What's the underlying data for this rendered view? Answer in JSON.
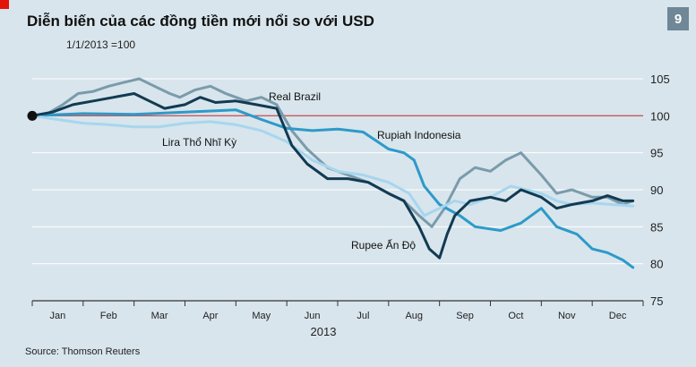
{
  "badge": "9",
  "source": "Source: Thomson Reuters",
  "colors": {
    "background": "#d8e5ec",
    "grid": "#ffffff",
    "reference": "#c9585a",
    "real_brazil": "#7a9bab",
    "rupiah_indonesia": "#2d9ac9",
    "lira": "#a7d6ee",
    "rupee": "#123a52"
  },
  "chart_data": {
    "type": "line",
    "title": "Diễn biến của các đồng tiền mới nổi so với USD",
    "subtitle": "1/1/2013 =100",
    "xlabel": "2013",
    "ylabel": "",
    "ylim": [
      75,
      105
    ],
    "yticks": [
      75,
      80,
      85,
      90,
      95,
      100,
      105
    ],
    "xlim": [
      0,
      12
    ],
    "month_labels": [
      "Jan",
      "Feb",
      "Mar",
      "Apr",
      "May",
      "Jun",
      "Jul",
      "Aug",
      "Sep",
      "Oct",
      "Nov",
      "Dec"
    ],
    "reference_line": 100,
    "grid": true,
    "series": [
      {
        "name": "Real Brazil",
        "color_key": "real_brazil",
        "points": [
          [
            0,
            100
          ],
          [
            0.3,
            100.3
          ],
          [
            0.6,
            101.5
          ],
          [
            0.9,
            103
          ],
          [
            1.2,
            103.3
          ],
          [
            1.5,
            104
          ],
          [
            1.8,
            104.5
          ],
          [
            2.1,
            105
          ],
          [
            2.4,
            104
          ],
          [
            2.7,
            103
          ],
          [
            2.9,
            102.5
          ],
          [
            3.2,
            103.5
          ],
          [
            3.5,
            104
          ],
          [
            3.8,
            103
          ],
          [
            4.2,
            102
          ],
          [
            4.5,
            102.5
          ],
          [
            4.8,
            101.5
          ],
          [
            5.1,
            98
          ],
          [
            5.4,
            95.5
          ],
          [
            5.8,
            93
          ],
          [
            6.2,
            92
          ],
          [
            6.6,
            91
          ],
          [
            7,
            89.5
          ],
          [
            7.3,
            88.5
          ],
          [
            7.6,
            86.5
          ],
          [
            7.85,
            85
          ],
          [
            8.1,
            87.5
          ],
          [
            8.4,
            91.5
          ],
          [
            8.7,
            93
          ],
          [
            9,
            92.5
          ],
          [
            9.3,
            94
          ],
          [
            9.6,
            95
          ],
          [
            10,
            92
          ],
          [
            10.3,
            89.5
          ],
          [
            10.6,
            90
          ],
          [
            11,
            89
          ],
          [
            11.3,
            89
          ],
          [
            11.6,
            88
          ],
          [
            11.8,
            88.5
          ]
        ]
      },
      {
        "name": "Rupiah Indonesia",
        "color_key": "rupiah_indonesia",
        "points": [
          [
            0,
            100
          ],
          [
            1,
            100.3
          ],
          [
            2,
            100.2
          ],
          [
            3,
            100.5
          ],
          [
            4,
            100.8
          ],
          [
            4.5,
            99.5
          ],
          [
            5,
            98.3
          ],
          [
            5.5,
            98
          ],
          [
            6,
            98.2
          ],
          [
            6.5,
            97.8
          ],
          [
            7,
            95.5
          ],
          [
            7.3,
            95
          ],
          [
            7.5,
            94
          ],
          [
            7.7,
            90.5
          ],
          [
            8,
            88
          ],
          [
            8.4,
            86.5
          ],
          [
            8.7,
            85
          ],
          [
            9.2,
            84.5
          ],
          [
            9.6,
            85.5
          ],
          [
            10,
            87.5
          ],
          [
            10.3,
            85
          ],
          [
            10.7,
            84
          ],
          [
            11,
            82
          ],
          [
            11.3,
            81.5
          ],
          [
            11.6,
            80.5
          ],
          [
            11.8,
            79.5
          ]
        ]
      },
      {
        "name": "Lira Thổ Nhĩ Kỳ",
        "color_key": "lira",
        "points": [
          [
            0,
            100
          ],
          [
            0.5,
            99.5
          ],
          [
            1,
            99
          ],
          [
            1.5,
            98.8
          ],
          [
            2,
            98.5
          ],
          [
            2.5,
            98.5
          ],
          [
            3,
            99
          ],
          [
            3.5,
            99.2
          ],
          [
            4,
            98.8
          ],
          [
            4.5,
            98
          ],
          [
            5,
            96.5
          ],
          [
            5.5,
            94
          ],
          [
            6,
            92.5
          ],
          [
            6.5,
            92
          ],
          [
            7,
            91
          ],
          [
            7.4,
            89.5
          ],
          [
            7.7,
            86.5
          ],
          [
            8,
            87.5
          ],
          [
            8.3,
            88.5
          ],
          [
            8.6,
            88
          ],
          [
            9,
            89
          ],
          [
            9.4,
            90.5
          ],
          [
            9.7,
            90
          ],
          [
            10,
            89.5
          ],
          [
            10.3,
            88.5
          ],
          [
            10.6,
            88
          ],
          [
            11,
            88.2
          ],
          [
            11.4,
            88
          ],
          [
            11.8,
            87.8
          ]
        ]
      },
      {
        "name": "Rupee Ấn Độ",
        "color_key": "rupee",
        "points": [
          [
            0,
            100
          ],
          [
            0.4,
            100.5
          ],
          [
            0.8,
            101.5
          ],
          [
            1.2,
            102
          ],
          [
            1.6,
            102.5
          ],
          [
            2,
            103
          ],
          [
            2.3,
            102
          ],
          [
            2.6,
            101
          ],
          [
            3,
            101.5
          ],
          [
            3.3,
            102.5
          ],
          [
            3.6,
            101.8
          ],
          [
            4,
            102
          ],
          [
            4.4,
            101.5
          ],
          [
            4.8,
            101
          ],
          [
            5.1,
            96
          ],
          [
            5.4,
            93.5
          ],
          [
            5.8,
            91.5
          ],
          [
            6.2,
            91.5
          ],
          [
            6.6,
            91
          ],
          [
            7,
            89.5
          ],
          [
            7.3,
            88.5
          ],
          [
            7.6,
            85
          ],
          [
            7.8,
            82
          ],
          [
            8,
            80.8
          ],
          [
            8.15,
            84
          ],
          [
            8.3,
            86.5
          ],
          [
            8.6,
            88.5
          ],
          [
            9,
            89
          ],
          [
            9.3,
            88.5
          ],
          [
            9.6,
            90
          ],
          [
            10,
            89
          ],
          [
            10.3,
            87.5
          ],
          [
            10.6,
            88
          ],
          [
            11,
            88.5
          ],
          [
            11.3,
            89.2
          ],
          [
            11.6,
            88.5
          ],
          [
            11.8,
            88.5
          ]
        ]
      }
    ]
  }
}
